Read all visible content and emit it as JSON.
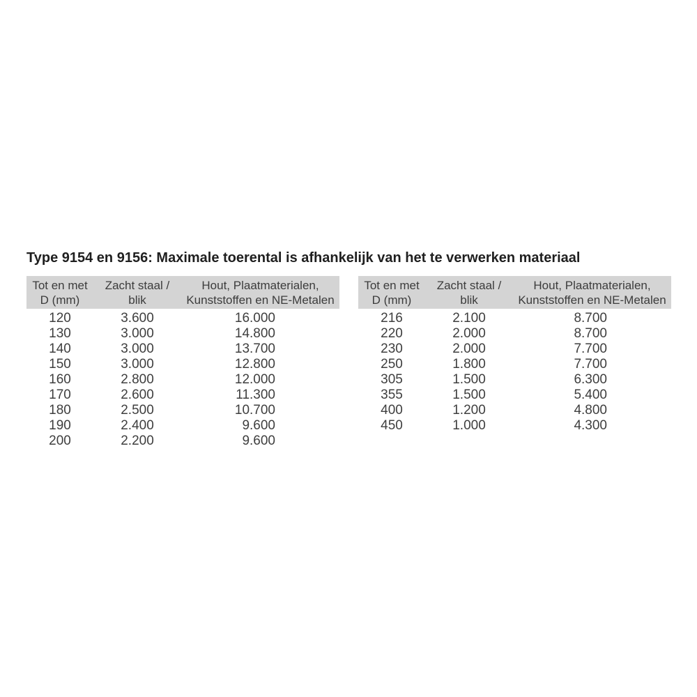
{
  "page": {
    "title": "Type 9154 en 9156: Maximale toerental is afhankelijk van het te verwerken materiaal"
  },
  "colors": {
    "header_background": "#d4d4d4",
    "table_text": "#3e3e3e",
    "title_text": "#1f1f1f",
    "page_background": "#ffffff"
  },
  "tables": [
    {
      "name": "left-table",
      "columns": [
        {
          "line1": "Tot en met",
          "line2": "D (mm)"
        },
        {
          "line1": "Zacht staal /",
          "line2": "blik"
        },
        {
          "line1": "Hout, Plaatmaterialen,",
          "line2": "Kunststoffen en NE-Metalen"
        }
      ],
      "rows": [
        [
          "120",
          "3.600",
          "16.000"
        ],
        [
          "130",
          "3.000",
          "14.800"
        ],
        [
          "140",
          "3.000",
          "13.700"
        ],
        [
          "150",
          "3.000",
          "12.800"
        ],
        [
          "160",
          "2.800",
          "12.000"
        ],
        [
          "170",
          "2.600",
          "11.300"
        ],
        [
          "180",
          "2.500",
          "10.700"
        ],
        [
          "190",
          "2.400",
          "9.600"
        ],
        [
          "200",
          "2.200",
          "9.600"
        ]
      ]
    },
    {
      "name": "right-table",
      "columns": [
        {
          "line1": "Tot en met",
          "line2": "D (mm)"
        },
        {
          "line1": "Zacht staal /",
          "line2": "blik"
        },
        {
          "line1": "Hout, Plaatmaterialen,",
          "line2": "Kunststoffen en NE-Metalen"
        }
      ],
      "rows": [
        [
          "216",
          "2.100",
          "8.700"
        ],
        [
          "220",
          "2.000",
          "8.700"
        ],
        [
          "230",
          "2.000",
          "7.700"
        ],
        [
          "250",
          "1.800",
          "7.700"
        ],
        [
          "305",
          "1.500",
          "6.300"
        ],
        [
          "355",
          "1.500",
          "5.400"
        ],
        [
          "400",
          "1.200",
          "4.800"
        ],
        [
          "450",
          "1.000",
          "4.300"
        ]
      ]
    }
  ]
}
